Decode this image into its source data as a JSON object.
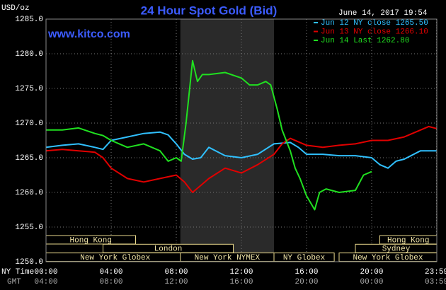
{
  "chart_data": {
    "type": "line",
    "title": "24 Hour Spot Gold (Bid)",
    "subtitle": "www.kitco.com",
    "timestamp": "June 14, 2017 19:54",
    "ylabel": "USD/oz",
    "xlabel": "NY Time",
    "x2label": "GMT",
    "ylim": [
      1250,
      1285
    ],
    "yticks": [
      {
        "value": 1250,
        "label": "1250.0"
      },
      {
        "value": 1255,
        "label": "1255.0"
      },
      {
        "value": 1260,
        "label": "1260.0"
      },
      {
        "value": 1265,
        "label": "1265.0"
      },
      {
        "value": 1270,
        "label": "1270.0"
      },
      {
        "value": 1275,
        "label": "1275.0"
      },
      {
        "value": 1280,
        "label": "1280.0"
      },
      {
        "value": 1285,
        "label": "1285.0"
      }
    ],
    "xlim": [
      0,
      24
    ],
    "xticks": [
      {
        "value": 0,
        "label": "00:00"
      },
      {
        "value": 4,
        "label": "04:00"
      },
      {
        "value": 8,
        "label": "08:00"
      },
      {
        "value": 12,
        "label": "12:00"
      },
      {
        "value": 16,
        "label": "16:00"
      },
      {
        "value": 20,
        "label": "20:00"
      },
      {
        "value": 23.98,
        "label": "23:59"
      }
    ],
    "x2ticks": [
      {
        "value": 0,
        "label": "04:00"
      },
      {
        "value": 4,
        "label": "08:00"
      },
      {
        "value": 8,
        "label": "12:00"
      },
      {
        "value": 12,
        "label": "16:00"
      },
      {
        "value": 16,
        "label": "20:00"
      },
      {
        "value": 20,
        "label": "00:00"
      },
      {
        "value": 23.98,
        "label": "03:59"
      }
    ],
    "grid": true,
    "legend": "upper right",
    "sessions": [
      [
        {
          "label": "Hong Kong",
          "start": 0,
          "end": 5.5
        },
        {
          "label": "Hong Kong",
          "start": 20.5,
          "end": 24
        }
      ],
      [
        {
          "label": "London",
          "start": 3.5,
          "end": 11.5
        },
        {
          "label": "Sydney",
          "start": 19,
          "end": 24
        }
      ],
      [
        {
          "label": "New York Globex",
          "start": 0,
          "end": 8.5
        },
        {
          "label": "New York NYMEX",
          "start": 8.25,
          "end": 14
        },
        {
          "label": "NY Globex",
          "start": 14,
          "end": 17.7
        },
        {
          "label": "New York Globex",
          "start": 18,
          "end": 24
        }
      ]
    ],
    "series": [
      {
        "name": "Jun 12 NY close 1265.50",
        "color": "#30c0ff",
        "x": [
          0,
          1,
          2,
          3,
          3.5,
          4,
          5,
          6,
          7,
          7.5,
          8,
          8.5,
          9,
          9.5,
          10,
          11,
          12,
          13,
          14,
          15,
          15.5,
          16,
          17,
          18,
          19,
          20,
          20.5,
          21,
          21.5,
          22,
          23,
          24
        ],
        "values": [
          1266.5,
          1266.8,
          1267,
          1266.5,
          1266.2,
          1267.5,
          1268,
          1268.5,
          1268.7,
          1268.3,
          1267,
          1265.5,
          1264.8,
          1265,
          1266.5,
          1265.3,
          1265,
          1265.5,
          1267,
          1267.2,
          1266.5,
          1265.5,
          1265.5,
          1265.3,
          1265.3,
          1265,
          1264,
          1263.5,
          1264.5,
          1264.8,
          1266,
          1266
        ]
      },
      {
        "name": "Jun 13 NY close 1266.10",
        "color": "#e00000",
        "x": [
          0,
          1,
          2,
          3,
          3.5,
          4,
          5,
          6,
          7,
          8,
          8.5,
          9,
          9.5,
          10,
          11,
          12,
          13,
          14,
          14.5,
          15,
          16,
          17,
          18,
          19,
          20,
          21,
          22,
          23,
          23.5,
          24
        ],
        "values": [
          1266,
          1266.2,
          1266,
          1265.8,
          1265,
          1263.5,
          1262,
          1261.5,
          1262,
          1262.5,
          1261.5,
          1260,
          1261,
          1262,
          1263.5,
          1262.8,
          1264,
          1265.5,
          1267,
          1267.8,
          1266.8,
          1266.5,
          1266.8,
          1267,
          1267.5,
          1267.5,
          1268,
          1269,
          1269.5,
          1269.2
        ]
      },
      {
        "name": "Jun 14 Last 1262.80",
        "color": "#20e020",
        "x": [
          0,
          1,
          2,
          3,
          3.5,
          4,
          4.5,
          5,
          6,
          7,
          7.5,
          8,
          8.3,
          8.6,
          9,
          9.3,
          9.6,
          10,
          11,
          12,
          12.5,
          13,
          13.5,
          13.8,
          14.2,
          14.5,
          15,
          15.3,
          15.6,
          16,
          16.5,
          16.8,
          17.2,
          18,
          19,
          19.5,
          20
        ],
        "values": [
          1269,
          1269,
          1269.3,
          1268.5,
          1268.2,
          1267.5,
          1267,
          1266.5,
          1267,
          1266,
          1264.5,
          1265,
          1264.5,
          1270,
          1279,
          1276,
          1277,
          1277,
          1277.3,
          1276.5,
          1275.5,
          1275.5,
          1276,
          1275.5,
          1272,
          1269,
          1266,
          1263.5,
          1262,
          1259.5,
          1257.5,
          1260,
          1260.5,
          1260,
          1260.3,
          1262.5,
          1263
        ]
      }
    ]
  }
}
